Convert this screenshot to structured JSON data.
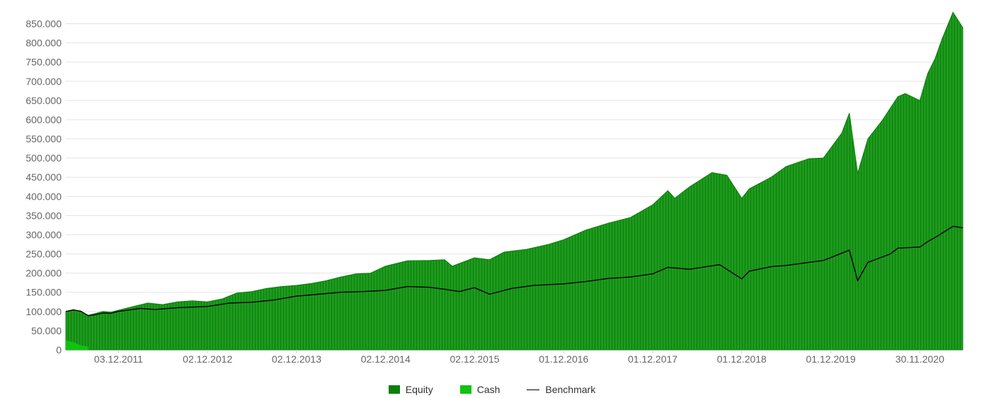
{
  "chart_data": {
    "type": "area",
    "colors": {
      "equity": "#0a7f0a",
      "equity_fill": "#1e9a1e",
      "cash": "#0fc30f",
      "benchmark": "#000000",
      "grid": "#e3e3e3"
    },
    "ylim": [
      0,
      875000
    ],
    "y_ticks": [
      0,
      50000,
      100000,
      150000,
      200000,
      250000,
      300000,
      350000,
      400000,
      450000,
      500000,
      550000,
      600000,
      650000,
      700000,
      750000,
      800000,
      850000
    ],
    "y_tick_labels": [
      "0",
      "50.000",
      "100.000",
      "150.000",
      "200.000",
      "250.000",
      "300.000",
      "350.000",
      "400.000",
      "450.000",
      "500.000",
      "550.000",
      "600.000",
      "650.000",
      "700.000",
      "750.000",
      "800.000",
      "850.000"
    ],
    "x_range": [
      "2011-05-01",
      "2021-05-25"
    ],
    "x_ticks": [
      "2011-12-03",
      "2012-12-02",
      "2013-12-02",
      "2014-12-02",
      "2015-12-02",
      "2016-12-01",
      "2017-12-01",
      "2018-12-01",
      "2019-12-01",
      "2020-11-30"
    ],
    "x_tick_labels": [
      "03.12.2011",
      "02.12.2012",
      "02.12.2013",
      "02.12.2014",
      "02.12.2015",
      "01.12.2016",
      "01.12.2017",
      "01.12.2018",
      "01.12.2019",
      "30.11.2020"
    ],
    "legend_position": "bottom-center",
    "grid": true,
    "series": [
      {
        "name": "Equity",
        "x": [
          "2011-05-01",
          "2011-06-01",
          "2011-07-01",
          "2011-08-01",
          "2011-09-01",
          "2011-10-01",
          "2011-11-01",
          "2011-12-01",
          "2012-02-01",
          "2012-04-01",
          "2012-06-01",
          "2012-08-01",
          "2012-10-01",
          "2012-12-01",
          "2013-02-01",
          "2013-04-01",
          "2013-06-01",
          "2013-08-01",
          "2013-10-01",
          "2013-12-01",
          "2014-02-01",
          "2014-04-01",
          "2014-06-01",
          "2014-08-01",
          "2014-10-01",
          "2014-12-01",
          "2015-03-01",
          "2015-06-01",
          "2015-08-01",
          "2015-09-01",
          "2015-12-01",
          "2016-02-01",
          "2016-04-01",
          "2016-07-01",
          "2016-10-01",
          "2016-12-01",
          "2017-03-01",
          "2017-06-01",
          "2017-09-01",
          "2017-12-01",
          "2018-02-01",
          "2018-03-01",
          "2018-05-01",
          "2018-08-01",
          "2018-10-01",
          "2018-12-01",
          "2019-01-01",
          "2019-04-01",
          "2019-06-01",
          "2019-09-01",
          "2019-11-01",
          "2020-01-15",
          "2020-02-15",
          "2020-03-20",
          "2020-05-01",
          "2020-07-01",
          "2020-09-01",
          "2020-10-01",
          "2020-11-30",
          "2021-01-01",
          "2021-02-01",
          "2021-03-01",
          "2021-04-15",
          "2021-05-25"
        ],
        "values": [
          100000,
          105000,
          100000,
          90000,
          95000,
          100000,
          98000,
          103000,
          113000,
          122000,
          118000,
          125000,
          128000,
          125000,
          133000,
          148000,
          152000,
          160000,
          165000,
          168000,
          173000,
          180000,
          190000,
          198000,
          200000,
          218000,
          232000,
          233000,
          235000,
          218000,
          240000,
          235000,
          255000,
          262000,
          275000,
          287000,
          312000,
          330000,
          345000,
          378000,
          415000,
          395000,
          425000,
          462000,
          455000,
          395000,
          420000,
          450000,
          478000,
          498000,
          500000,
          565000,
          617000,
          460000,
          550000,
          600000,
          660000,
          668000,
          650000,
          720000,
          760000,
          810000,
          880000,
          840000
        ]
      },
      {
        "name": "Cash",
        "x": [
          "2011-05-01",
          "2011-06-01",
          "2011-07-01",
          "2011-08-01"
        ],
        "values": [
          25000,
          20000,
          12000,
          8000
        ]
      },
      {
        "name": "Benchmark",
        "x": [
          "2011-05-01",
          "2011-06-01",
          "2011-07-01",
          "2011-08-01",
          "2011-09-01",
          "2011-10-01",
          "2011-11-01",
          "2011-12-01",
          "2012-03-01",
          "2012-05-01",
          "2012-08-01",
          "2012-12-01",
          "2013-03-01",
          "2013-06-01",
          "2013-09-01",
          "2013-12-01",
          "2014-03-01",
          "2014-06-01",
          "2014-09-01",
          "2014-12-01",
          "2015-03-01",
          "2015-06-01",
          "2015-08-01",
          "2015-10-01",
          "2015-12-01",
          "2016-02-01",
          "2016-05-01",
          "2016-08-01",
          "2016-12-01",
          "2017-03-01",
          "2017-06-01",
          "2017-09-01",
          "2017-12-01",
          "2018-02-01",
          "2018-05-01",
          "2018-09-01",
          "2018-12-01",
          "2019-01-01",
          "2019-04-01",
          "2019-06-01",
          "2019-09-01",
          "2019-11-01",
          "2020-02-15",
          "2020-03-20",
          "2020-05-01",
          "2020-08-01",
          "2020-09-01",
          "2020-11-30",
          "2021-01-01",
          "2021-02-01",
          "2021-04-15",
          "2021-05-25"
        ],
        "values": [
          100000,
          104000,
          101000,
          89000,
          92000,
          96000,
          95000,
          100000,
          108000,
          105000,
          110000,
          113000,
          122000,
          124000,
          130000,
          140000,
          145000,
          150000,
          152000,
          155000,
          165000,
          163000,
          158000,
          152000,
          162000,
          145000,
          160000,
          168000,
          172000,
          178000,
          186000,
          190000,
          198000,
          215000,
          210000,
          222000,
          185000,
          205000,
          217000,
          220000,
          228000,
          233000,
          260000,
          180000,
          228000,
          250000,
          265000,
          268000,
          282000,
          293000,
          322000,
          318000
        ]
      }
    ]
  }
}
